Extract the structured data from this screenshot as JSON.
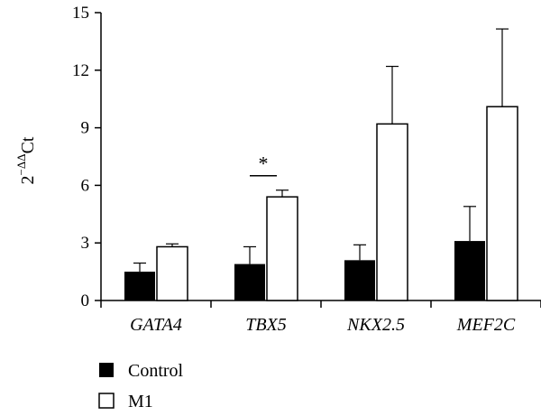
{
  "chart_data": {
    "type": "bar",
    "ylabel": {
      "base": "2",
      "exponent": "−ΔΔ",
      "suffix": "Ct"
    },
    "ylim": [
      0,
      15
    ],
    "yticks": [
      "0",
      "3",
      "6",
      "9",
      "12",
      "15"
    ],
    "grid": false,
    "legend_placement": "bottom-left",
    "categories": [
      "GATA4",
      "TBX5",
      "NKX2.5",
      "MEF2C"
    ],
    "series": [
      {
        "name": "Control",
        "color": "#000000",
        "values": [
          1.5,
          1.9,
          2.1,
          3.1
        ],
        "errors": [
          0.45,
          0.9,
          0.8,
          1.8
        ]
      },
      {
        "name": "M1",
        "color": "#ffffff",
        "values": [
          2.8,
          5.4,
          9.2,
          10.1
        ],
        "errors": [
          0.15,
          0.35,
          3.0,
          4.05
        ]
      }
    ],
    "annotations": [
      {
        "text": "*",
        "category": "TBX5"
      }
    ]
  }
}
